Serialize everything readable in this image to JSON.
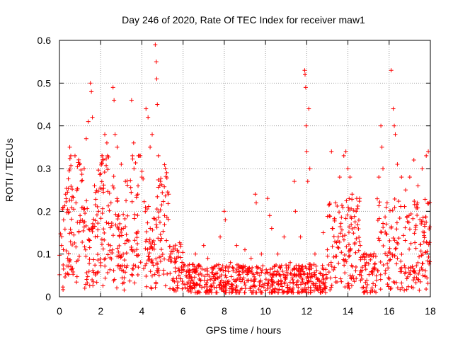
{
  "chart_data": {
    "type": "scatter",
    "title": "Day 246 of 2020, Rate Of TEC Index for receiver maw1",
    "xlabel": "GPS time / hours",
    "ylabel": "ROTI / TECUs",
    "xlim": [
      0,
      18
    ],
    "ylim": [
      0,
      0.6
    ],
    "xticks": [
      0,
      2,
      4,
      6,
      8,
      10,
      12,
      14,
      16,
      18
    ],
    "yticks": [
      0,
      0.1,
      0.2,
      0.3,
      0.4,
      0.5,
      0.6
    ],
    "xtick_labels": [
      "0",
      "2",
      "4",
      "6",
      "8",
      "10",
      "12",
      "14",
      "16",
      "18"
    ],
    "ytick_labels": [
      "0",
      "0.1",
      "0.2",
      "0.3",
      "0.4",
      "0.5",
      "0.6"
    ],
    "grid": true,
    "marker": "plus",
    "color": "#ff0000",
    "series": [
      {
        "points": [
          [
            0.1,
            0.12
          ],
          [
            0.2,
            0.18
          ],
          [
            0.3,
            0.24
          ],
          [
            0.4,
            0.09
          ],
          [
            0.5,
            0.35
          ],
          [
            0.55,
            0.33
          ],
          [
            0.6,
            0.15
          ],
          [
            0.8,
            0.22
          ],
          [
            1.0,
            0.19
          ],
          [
            1.2,
            0.3
          ],
          [
            1.3,
            0.37
          ],
          [
            1.4,
            0.41
          ],
          [
            1.5,
            0.5
          ],
          [
            1.55,
            0.48
          ],
          [
            1.6,
            0.42
          ],
          [
            1.7,
            0.26
          ],
          [
            1.9,
            0.2
          ],
          [
            2.1,
            0.32
          ],
          [
            2.2,
            0.38
          ],
          [
            2.3,
            0.36
          ],
          [
            2.5,
            0.22
          ],
          [
            2.6,
            0.49
          ],
          [
            2.65,
            0.46
          ],
          [
            2.7,
            0.38
          ],
          [
            2.8,
            0.35
          ],
          [
            3.0,
            0.31
          ],
          [
            3.2,
            0.27
          ],
          [
            3.5,
            0.46
          ],
          [
            3.6,
            0.36
          ],
          [
            3.8,
            0.24
          ],
          [
            4.0,
            0.28
          ],
          [
            4.2,
            0.44
          ],
          [
            4.3,
            0.42
          ],
          [
            4.4,
            0.35
          ],
          [
            4.5,
            0.38
          ],
          [
            4.65,
            0.59
          ],
          [
            4.7,
            0.55
          ],
          [
            4.72,
            0.51
          ],
          [
            4.75,
            0.45
          ],
          [
            4.8,
            0.33
          ],
          [
            4.9,
            0.27
          ],
          [
            5.1,
            0.19
          ],
          [
            5.3,
            0.24
          ],
          [
            5.4,
            0.1
          ],
          [
            5.6,
            0.08
          ],
          [
            5.8,
            0.05
          ],
          [
            6.0,
            0.03
          ],
          [
            6.3,
            0.06
          ],
          [
            6.6,
            0.1
          ],
          [
            7.0,
            0.12
          ],
          [
            7.2,
            0.09
          ],
          [
            7.5,
            0.07
          ],
          [
            7.8,
            0.14
          ],
          [
            8.0,
            0.2
          ],
          [
            8.05,
            0.18
          ],
          [
            8.3,
            0.08
          ],
          [
            8.6,
            0.12
          ],
          [
            9.0,
            0.11
          ],
          [
            9.3,
            0.09
          ],
          [
            9.5,
            0.24
          ],
          [
            9.55,
            0.22
          ],
          [
            9.8,
            0.1
          ],
          [
            10.1,
            0.23
          ],
          [
            10.2,
            0.19
          ],
          [
            10.3,
            0.16
          ],
          [
            10.6,
            0.1
          ],
          [
            10.9,
            0.14
          ],
          [
            11.2,
            0.08
          ],
          [
            11.4,
            0.27
          ],
          [
            11.45,
            0.2
          ],
          [
            11.7,
            0.14
          ],
          [
            11.9,
            0.53
          ],
          [
            11.92,
            0.52
          ],
          [
            11.95,
            0.49
          ],
          [
            11.97,
            0.4
          ],
          [
            12.0,
            0.34
          ],
          [
            12.05,
            0.27
          ],
          [
            12.1,
            0.44
          ],
          [
            12.15,
            0.3
          ],
          [
            12.4,
            0.1
          ],
          [
            12.8,
            0.15
          ],
          [
            13.0,
            0.11
          ],
          [
            13.2,
            0.34
          ],
          [
            13.4,
            0.22
          ],
          [
            13.6,
            0.28
          ],
          [
            13.8,
            0.33
          ],
          [
            13.9,
            0.34
          ],
          [
            14.0,
            0.3
          ],
          [
            14.1,
            0.28
          ],
          [
            14.2,
            0.24
          ],
          [
            14.4,
            0.2
          ],
          [
            14.6,
            0.12
          ],
          [
            14.9,
            0.08
          ],
          [
            15.2,
            0.06
          ],
          [
            15.5,
            0.28
          ],
          [
            15.6,
            0.4
          ],
          [
            15.65,
            0.35
          ],
          [
            15.7,
            0.3
          ],
          [
            15.9,
            0.22
          ],
          [
            16.1,
            0.53
          ],
          [
            16.2,
            0.44
          ],
          [
            16.25,
            0.4
          ],
          [
            16.3,
            0.38
          ],
          [
            16.4,
            0.31
          ],
          [
            16.6,
            0.28
          ],
          [
            16.8,
            0.25
          ],
          [
            17.0,
            0.28
          ],
          [
            17.2,
            0.32
          ],
          [
            17.4,
            0.26
          ],
          [
            17.6,
            0.3
          ],
          [
            17.8,
            0.33
          ],
          [
            17.9,
            0.34
          ]
        ]
      }
    ]
  }
}
